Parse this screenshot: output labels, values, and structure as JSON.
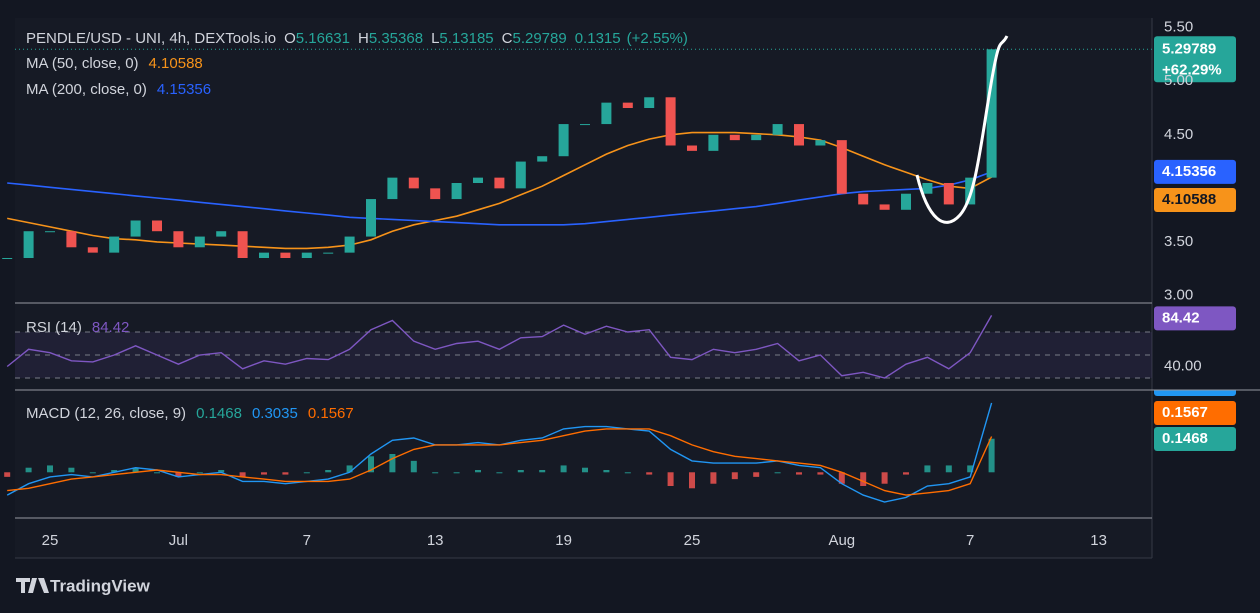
{
  "chart_data": [
    {
      "type": "candlestick",
      "title": "PENDLE/USD - UNI, 4h, DEXTools.io",
      "ohlc": {
        "open_label": "O",
        "open": "5.16631",
        "high_label": "H",
        "high": "5.35368",
        "low_label": "L",
        "low": "5.13185",
        "close_label": "C",
        "close": "5.29789",
        "change": "0.1315",
        "change_pct": "(+2.55%)"
      },
      "period_change": "+62.29%",
      "categories": [
        null,
        null,
        "25",
        null,
        null,
        null,
        null,
        null,
        "Jul",
        null,
        null,
        null,
        null,
        null,
        "7",
        null,
        null,
        null,
        null,
        null,
        "13",
        null,
        null,
        null,
        null,
        null,
        "19",
        null,
        null,
        null,
        null,
        null,
        "25",
        null,
        null,
        null,
        null,
        null,
        null,
        "Aug",
        null,
        null,
        null,
        null,
        null,
        "7",
        null,
        null,
        null,
        null,
        null,
        "13",
        null
      ],
      "values": [
        3.35,
        3.6,
        3.6,
        3.45,
        3.4,
        3.55,
        3.7,
        3.6,
        3.45,
        3.55,
        3.6,
        3.35,
        3.4,
        3.35,
        3.4,
        3.4,
        3.55,
        3.9,
        4.1,
        4.0,
        3.9,
        4.05,
        4.1,
        4.0,
        4.25,
        4.3,
        4.6,
        4.6,
        4.8,
        4.75,
        4.85,
        4.4,
        4.35,
        4.5,
        4.45,
        4.5,
        4.6,
        4.4,
        4.45,
        3.95,
        3.85,
        3.8,
        3.95,
        4.05,
        3.85,
        4.1,
        5.29789,
        null,
        null,
        null,
        null,
        null,
        null
      ],
      "up_color": "#26a69a",
      "down_color": "#ef5350",
      "series": [
        {
          "name": "MA (50, close, 0)",
          "color": "#f7931a",
          "values": [
            3.72,
            3.68,
            3.64,
            3.6,
            3.56,
            3.53,
            3.52,
            3.5,
            3.49,
            3.48,
            3.47,
            3.46,
            3.45,
            3.44,
            3.44,
            3.45,
            3.47,
            3.52,
            3.6,
            3.66,
            3.7,
            3.74,
            3.8,
            3.86,
            3.94,
            4.02,
            4.12,
            4.22,
            4.32,
            4.4,
            4.46,
            4.5,
            4.52,
            4.52,
            4.52,
            4.51,
            4.5,
            4.48,
            4.45,
            4.38,
            4.3,
            4.22,
            4.15,
            4.08,
            4.02,
            4.0,
            4.10588,
            null,
            null,
            null,
            null,
            null,
            null
          ]
        },
        {
          "name": "MA (200, close, 0)",
          "color": "#2962ff",
          "values": [
            4.05,
            4.03,
            4.01,
            3.99,
            3.97,
            3.95,
            3.93,
            3.91,
            3.89,
            3.87,
            3.85,
            3.83,
            3.81,
            3.79,
            3.77,
            3.75,
            3.73,
            3.72,
            3.71,
            3.7,
            3.69,
            3.68,
            3.67,
            3.66,
            3.66,
            3.66,
            3.66,
            3.67,
            3.69,
            3.71,
            3.73,
            3.75,
            3.77,
            3.79,
            3.81,
            3.83,
            3.86,
            3.89,
            3.92,
            3.95,
            3.97,
            3.98,
            3.99,
            4.0,
            4.03,
            4.08,
            4.15356,
            null,
            null,
            null,
            null,
            null,
            null
          ]
        }
      ],
      "ylim": [
        2.93,
        5.59
      ],
      "yticks": [
        {
          "value": 3,
          "label": "3.00"
        },
        {
          "value": 3.5,
          "label": "3.50"
        },
        {
          "value": 4.5,
          "label": "4.50"
        },
        {
          "value": 5,
          "label": "5.00"
        },
        {
          "value": 5.5,
          "label": "5.50"
        }
      ]
    },
    {
      "type": "line",
      "title": "RSI (14)",
      "series": [
        {
          "color": "#7e57c2",
          "values": [
            40,
            55,
            52,
            45,
            44,
            50,
            58,
            50,
            42,
            50,
            52,
            38,
            45,
            42,
            47,
            46,
            55,
            72,
            80,
            62,
            55,
            60,
            62,
            55,
            65,
            66,
            76,
            68,
            75,
            70,
            72,
            48,
            46,
            55,
            52,
            55,
            60,
            45,
            50,
            32,
            35,
            30,
            42,
            48,
            38,
            52,
            84.42,
            null,
            null,
            null,
            null,
            null,
            null
          ]
        }
      ],
      "levels": [
        30,
        50,
        70
      ],
      "ylim": [
        19.6,
        95.2
      ],
      "yticks": [
        {
          "value": 40,
          "label": "40.00"
        }
      ]
    },
    {
      "type": "line",
      "title": "MACD (12, 26, close, 9)",
      "series": [
        {
          "style": "bar",
          "color": "#26a69a",
          "negative_color": "#ef5350",
          "values": [
            -0.02,
            0.02,
            0.03,
            0.02,
            0,
            0.01,
            0.02,
            0,
            -0.02,
            0,
            0.01,
            -0.02,
            -0.01,
            -0.01,
            0,
            0.01,
            0.03,
            0.07,
            0.08,
            0.05,
            0,
            0,
            0.01,
            0,
            0.01,
            0.01,
            0.03,
            0.02,
            0.01,
            0,
            -0.01,
            -0.06,
            -0.07,
            -0.05,
            -0.03,
            -0.02,
            0,
            -0.01,
            -0.01,
            -0.05,
            -0.06,
            -0.05,
            -0.01,
            0.03,
            0.03,
            0.03,
            0.1468,
            null,
            null,
            null,
            null,
            null,
            null
          ]
        },
        {
          "color": "#2196f3",
          "values": [
            -0.1,
            -0.05,
            -0.02,
            -0.01,
            -0.02,
            0,
            0.02,
            0.01,
            -0.02,
            -0.01,
            0,
            -0.04,
            -0.04,
            -0.05,
            -0.04,
            -0.03,
            0,
            0.08,
            0.14,
            0.15,
            0.12,
            0.12,
            0.13,
            0.12,
            0.14,
            0.15,
            0.19,
            0.2,
            0.2,
            0.19,
            0.18,
            0.1,
            0.05,
            0.04,
            0.04,
            0.04,
            0.05,
            0.03,
            0.02,
            -0.05,
            -0.1,
            -0.13,
            -0.11,
            -0.06,
            -0.05,
            -0.02,
            0.3035,
            null,
            null,
            null,
            null,
            null,
            null
          ]
        },
        {
          "color": "#ff6d00",
          "values": [
            -0.08,
            -0.07,
            -0.05,
            -0.03,
            -0.02,
            -0.01,
            0,
            0.01,
            0,
            -0.01,
            -0.01,
            -0.02,
            -0.03,
            -0.04,
            -0.04,
            -0.04,
            -0.03,
            0.01,
            0.06,
            0.1,
            0.12,
            0.12,
            0.12,
            0.12,
            0.13,
            0.14,
            0.16,
            0.18,
            0.19,
            0.19,
            0.19,
            0.16,
            0.12,
            0.09,
            0.07,
            0.06,
            0.05,
            0.04,
            0.03,
            0,
            -0.04,
            -0.08,
            -0.1,
            -0.09,
            -0.08,
            -0.05,
            0.1567,
            null,
            null,
            null,
            null,
            null,
            null
          ]
        }
      ],
      "ylim": [
        -0.2,
        0.36
      ]
    }
  ],
  "brand": "TradingView"
}
